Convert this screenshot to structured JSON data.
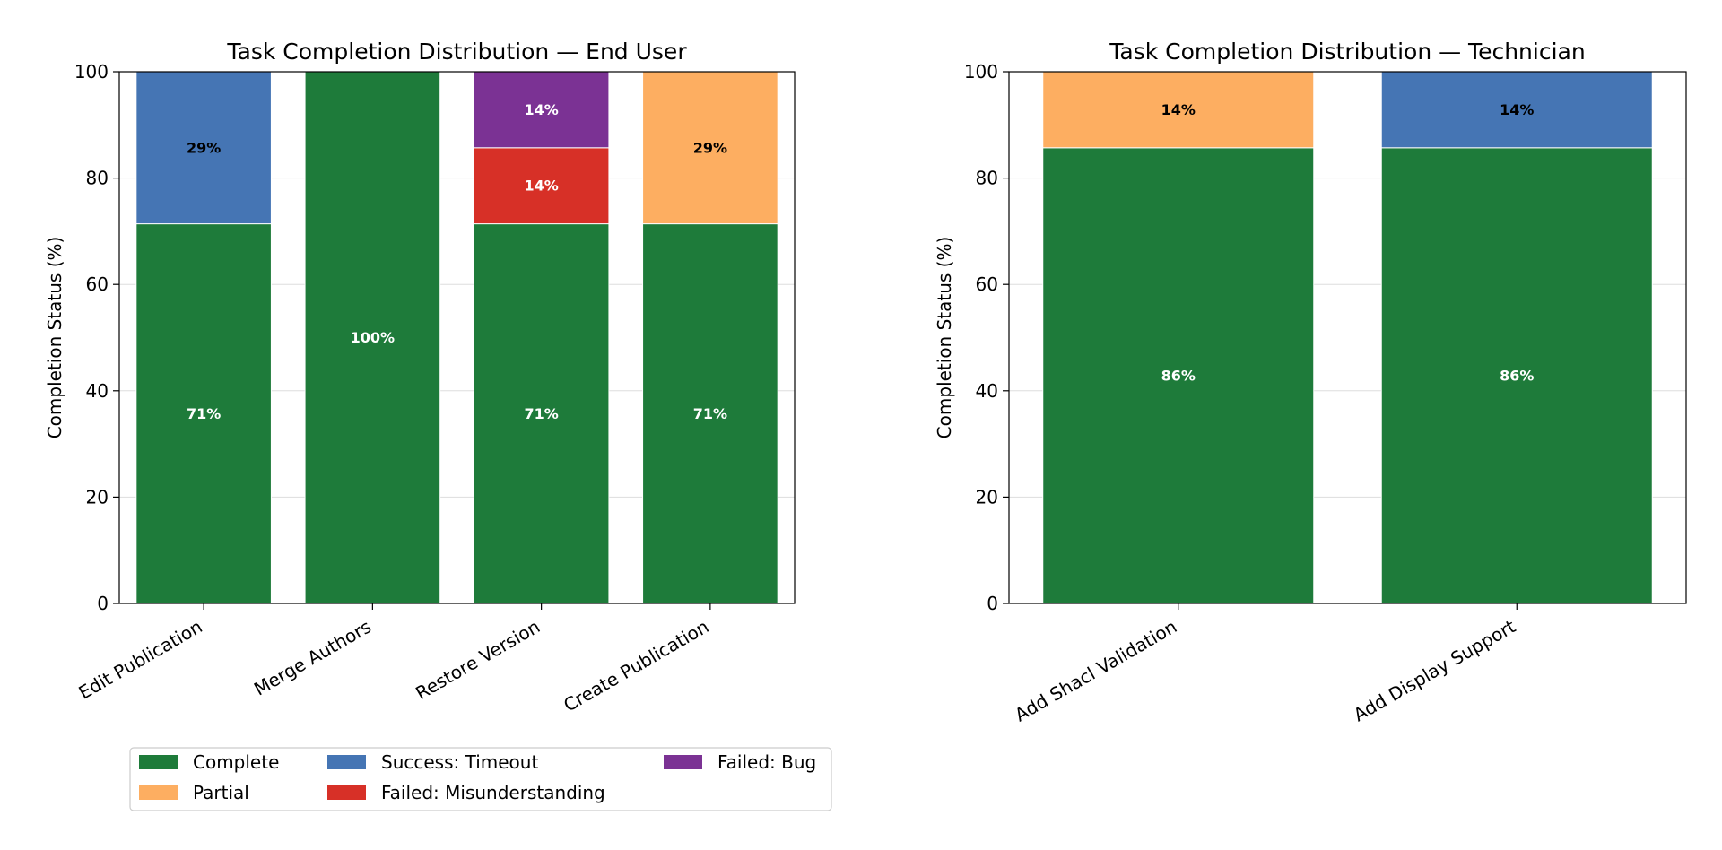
{
  "chart_data": [
    {
      "type": "stacked-bar",
      "title": "Task Completion Distribution — End User",
      "xlabel": "",
      "ylabel": "Completion Status (%)",
      "ylim": [
        0,
        100
      ],
      "yticks": [
        0,
        20,
        40,
        60,
        80,
        100
      ],
      "grid": "horizontal",
      "categories": [
        "Edit Publication",
        "Merge Authors",
        "Restore Version",
        "Create Publication"
      ],
      "series": [
        {
          "name": "Complete",
          "values": [
            71.4,
            100,
            71.4,
            71.4
          ],
          "labels": [
            "71%",
            "100%",
            "71%",
            "71%"
          ]
        },
        {
          "name": "Partial",
          "values": [
            0,
            0,
            0,
            28.6
          ],
          "labels": [
            "",
            "",
            "",
            "29%"
          ]
        },
        {
          "name": "Success: Timeout",
          "values": [
            28.6,
            0,
            0,
            0
          ],
          "labels": [
            "29%",
            "",
            "",
            ""
          ]
        },
        {
          "name": "Failed: Misunderstanding",
          "values": [
            0,
            0,
            14.3,
            0
          ],
          "labels": [
            "",
            "",
            "14%",
            ""
          ]
        },
        {
          "name": "Failed: Bug",
          "values": [
            0,
            0,
            14.3,
            0
          ],
          "labels": [
            "",
            "",
            "14%",
            ""
          ]
        }
      ]
    },
    {
      "type": "stacked-bar",
      "title": "Task Completion Distribution — Technician",
      "xlabel": "",
      "ylabel": "Completion Status (%)",
      "ylim": [
        0,
        100
      ],
      "yticks": [
        0,
        20,
        40,
        60,
        80,
        100
      ],
      "grid": "horizontal",
      "categories": [
        "Add Shacl Validation",
        "Add Display Support"
      ],
      "series": [
        {
          "name": "Complete",
          "values": [
            85.7,
            85.7
          ],
          "labels": [
            "86%",
            "86%"
          ]
        },
        {
          "name": "Partial",
          "values": [
            14.3,
            0
          ],
          "labels": [
            "14%",
            ""
          ]
        },
        {
          "name": "Success: Timeout",
          "values": [
            0,
            14.3
          ],
          "labels": [
            "",
            "14%"
          ]
        },
        {
          "name": "Failed: Misunderstanding",
          "values": [
            0,
            0
          ],
          "labels": [
            "",
            ""
          ]
        },
        {
          "name": "Failed: Bug",
          "values": [
            0,
            0
          ],
          "labels": [
            "",
            ""
          ]
        }
      ]
    }
  ],
  "legend": {
    "placement": "bottom-left",
    "entries": [
      "Complete",
      "Success: Timeout",
      "Failed: Bug",
      "Partial",
      "Failed: Misunderstanding"
    ]
  },
  "colors": {
    "Complete": "#1e7b3a",
    "Partial": "#fdae61",
    "Success: Timeout": "#4575b4",
    "Failed: Misunderstanding": "#d73027",
    "Failed: Bug": "#7b3294"
  },
  "label_colors": {
    "Complete": "#ffffff",
    "Partial": "#000000",
    "Success: Timeout": "#000000",
    "Failed: Misunderstanding": "#ffffff",
    "Failed: Bug": "#ffffff"
  }
}
